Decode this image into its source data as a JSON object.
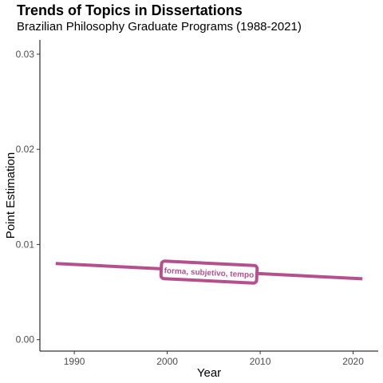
{
  "chart_data": {
    "type": "line",
    "title": "Trends of Topics in Dissertations",
    "subtitle": "Brazilian Philosophy Graduate Programs (1988-2021)",
    "xlabel": "Year",
    "ylabel": "Point Estimation",
    "xlim": [
      1986.3,
      2022.7
    ],
    "ylim": [
      -0.0012,
      0.0315
    ],
    "x_ticks": [
      1990,
      2000,
      2010,
      2020
    ],
    "y_ticks": [
      0.0,
      0.01,
      0.02,
      0.03
    ],
    "y_tick_labels": [
      "0.00",
      "0.01",
      "0.02",
      "0.03"
    ],
    "grid": false,
    "series": [
      {
        "name": "forma, subjetivo, tempo",
        "color": "#b5508f",
        "x": [
          1988,
          2021
        ],
        "y": [
          0.008,
          0.0064
        ],
        "label_x": 2004.5,
        "label_y": 0.0071
      }
    ]
  }
}
